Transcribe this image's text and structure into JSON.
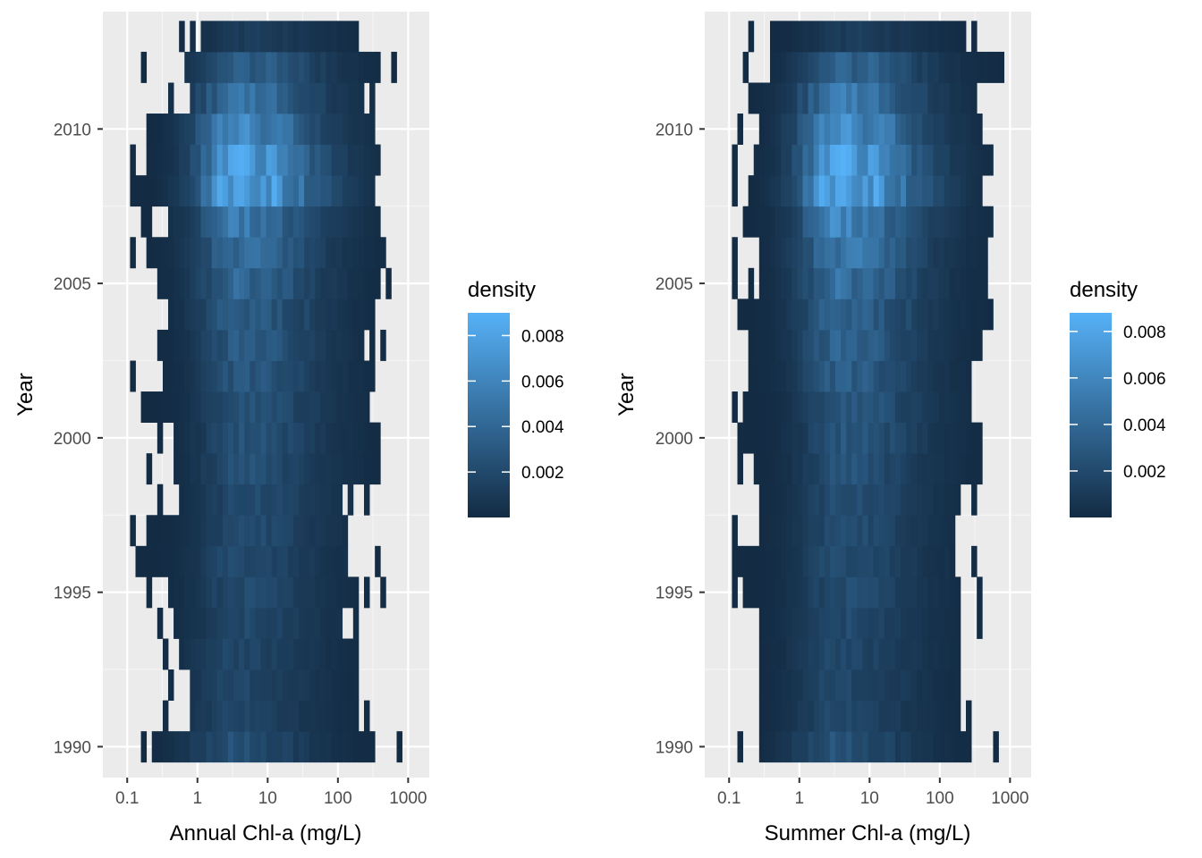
{
  "colors": {
    "panel_bg": "#ebebeb",
    "grid_major": "#ffffff",
    "grid_minor": "#f5f5f5",
    "tick": "#333333",
    "low": "#132b43",
    "high": "#56b1f7"
  },
  "chart_data": [
    {
      "type": "heatmap",
      "xlabel": "Annual Chl-a (mg/L)",
      "ylabel": "Year",
      "x_scale": "log10",
      "xlim": [
        0.045,
        2000
      ],
      "ylim": [
        1989,
        2013.8
      ],
      "x_ticks": [
        0.1,
        1,
        10,
        100,
        1000
      ],
      "x_tick_labels": [
        "0.1",
        "1",
        "10",
        "100",
        "1000"
      ],
      "y_ticks": [
        1990,
        1995,
        2000,
        2005,
        2010
      ],
      "y_tick_labels": [
        "1990",
        "1995",
        "2000",
        "2005",
        "2010"
      ],
      "legend": {
        "title": "density",
        "limits": [
          0.0,
          0.009
        ],
        "breaks": [
          0.002,
          0.004,
          0.006,
          0.008
        ],
        "break_labels": [
          "0.002",
          "0.004",
          "0.006",
          "0.008"
        ],
        "position": "right"
      },
      "rows": [
        {
          "year": 1990,
          "range": [
            0.22,
            330
          ],
          "outliers": [
            0.16,
            700
          ],
          "peak": 0.0025,
          "mode": 3.0
        },
        {
          "year": 1991,
          "range": [
            0.85,
            200
          ],
          "outliers": [
            0.36,
            250
          ],
          "peak": 0.0018,
          "mode": 3.5
        },
        {
          "year": 1992,
          "range": [
            0.72,
            205
          ],
          "outliers": [
            0.4
          ],
          "peak": 0.0019,
          "mode": 3.5
        },
        {
          "year": 1993,
          "range": [
            0.55,
            210
          ],
          "outliers": [
            0.36
          ],
          "peak": 0.0019,
          "mode": 3.5
        },
        {
          "year": 1994,
          "range": [
            0.5,
            120
          ],
          "outliers": [
            0.3,
            180
          ],
          "peak": 0.002,
          "mode": 4.0
        },
        {
          "year": 1995,
          "range": [
            0.35,
            180
          ],
          "outliers": [
            0.22,
            250,
            420
          ],
          "peak": 0.0021,
          "mode": 4.0
        },
        {
          "year": 1996,
          "range": [
            0.13,
            140
          ],
          "outliers": [
            360
          ],
          "peak": 0.0022,
          "mode": 4.0
        },
        {
          "year": 1997,
          "range": [
            0.18,
            130
          ],
          "outliers": [
            0.13
          ],
          "peak": 0.0022,
          "mode": 4.5
        },
        {
          "year": 1998,
          "range": [
            0.55,
            110
          ],
          "outliers": [
            0.3,
            150,
            260
          ],
          "peak": 0.0022,
          "mode": 4.5
        },
        {
          "year": 1999,
          "range": [
            0.42,
            400
          ],
          "outliers": [
            0.22
          ],
          "peak": 0.0025,
          "mode": 4.5
        },
        {
          "year": 2000,
          "range": [
            0.42,
            400
          ],
          "outliers": [
            0.28
          ],
          "peak": 0.0027,
          "mode": 4.5
        },
        {
          "year": 2001,
          "range": [
            0.16,
            300
          ],
          "outliers": [],
          "peak": 0.0028,
          "mode": 4.5
        },
        {
          "year": 2002,
          "range": [
            0.3,
            320
          ],
          "outliers": [
            0.13
          ],
          "peak": 0.003,
          "mode": 4.5
        },
        {
          "year": 2003,
          "range": [
            0.28,
            240
          ],
          "outliers": [
            300,
            420
          ],
          "peak": 0.0033,
          "mode": 4.5
        },
        {
          "year": 2004,
          "range": [
            0.35,
            350
          ],
          "outliers": [],
          "peak": 0.0036,
          "mode": 4.0
        },
        {
          "year": 2005,
          "range": [
            0.25,
            410
          ],
          "outliers": [
            560
          ],
          "peak": 0.004,
          "mode": 4.0
        },
        {
          "year": 2006,
          "range": [
            0.2,
            460
          ],
          "outliers": [
            0.13
          ],
          "peak": 0.0045,
          "mode": 4.0
        },
        {
          "year": 2007,
          "range": [
            0.38,
            380
          ],
          "outliers": [
            0.16,
            0.22
          ],
          "peak": 0.0055,
          "mode": 4.0
        },
        {
          "year": 2008,
          "range": [
            0.12,
            330
          ],
          "outliers": [],
          "peak": 0.0088,
          "mode": 4.0
        },
        {
          "year": 2009,
          "range": [
            0.18,
            420
          ],
          "outliers": [
            0.13
          ],
          "peak": 0.008,
          "mode": 4.0
        },
        {
          "year": 2010,
          "range": [
            0.2,
            260
          ],
          "outliers": [
            320
          ],
          "peak": 0.0065,
          "mode": 3.8
        },
        {
          "year": 2011,
          "range": [
            0.75,
            230
          ],
          "outliers": [
            0.4,
            300
          ],
          "peak": 0.005,
          "mode": 4.0
        },
        {
          "year": 2012,
          "range": [
            0.65,
            420
          ],
          "outliers": [
            0.18,
            600
          ],
          "peak": 0.0035,
          "mode": 4.5
        },
        {
          "year": 2013,
          "range": [
            1.1,
            200
          ],
          "outliers": [
            0.6,
            0.85
          ],
          "peak": 0.0012,
          "mode": 5.0
        }
      ]
    },
    {
      "type": "heatmap",
      "xlabel": "Summer Chl-a (mg/L)",
      "ylabel": "Year",
      "x_scale": "log10",
      "xlim": [
        0.045,
        2000
      ],
      "ylim": [
        1989,
        2013.8
      ],
      "x_ticks": [
        0.1,
        1,
        10,
        100,
        1000
      ],
      "x_tick_labels": [
        "0.1",
        "1",
        "10",
        "100",
        "1000"
      ],
      "y_ticks": [
        1990,
        1995,
        2000,
        2005,
        2010
      ],
      "y_tick_labels": [
        "1990",
        "1995",
        "2000",
        "2005",
        "2010"
      ],
      "legend": {
        "title": "density",
        "limits": [
          0.0,
          0.0088
        ],
        "breaks": [
          0.002,
          0.004,
          0.006,
          0.008
        ],
        "break_labels": [
          "0.002",
          "0.004",
          "0.006",
          "0.008"
        ],
        "position": "right"
      },
      "rows": [
        {
          "year": 1990,
          "range": [
            0.25,
            300
          ],
          "outliers": [
            0.15,
            650
          ],
          "peak": 0.0026,
          "mode": 3.0
        },
        {
          "year": 1991,
          "range": [
            0.25,
            200
          ],
          "outliers": [
            250
          ],
          "peak": 0.0019,
          "mode": 3.5
        },
        {
          "year": 1992,
          "range": [
            0.25,
            200
          ],
          "outliers": [],
          "peak": 0.0019,
          "mode": 3.5
        },
        {
          "year": 1993,
          "range": [
            0.25,
            200
          ],
          "outliers": [],
          "peak": 0.002,
          "mode": 3.5
        },
        {
          "year": 1994,
          "range": [
            0.25,
            200
          ],
          "outliers": [
            400
          ],
          "peak": 0.0021,
          "mode": 3.5
        },
        {
          "year": 1995,
          "range": [
            0.17,
            200
          ],
          "outliers": [
            0.12,
            400
          ],
          "peak": 0.0022,
          "mode": 4.0
        },
        {
          "year": 1996,
          "range": [
            0.12,
            160
          ],
          "outliers": [
            330
          ],
          "peak": 0.0023,
          "mode": 4.0
        },
        {
          "year": 1997,
          "range": [
            0.25,
            160
          ],
          "outliers": [
            0.12
          ],
          "peak": 0.0023,
          "mode": 4.0
        },
        {
          "year": 1998,
          "range": [
            0.25,
            200
          ],
          "outliers": [
            300
          ],
          "peak": 0.0024,
          "mode": 4.0
        },
        {
          "year": 1999,
          "range": [
            0.22,
            410
          ],
          "outliers": [
            0.15
          ],
          "peak": 0.0026,
          "mode": 4.5
        },
        {
          "year": 2000,
          "range": [
            0.13,
            410
          ],
          "outliers": [],
          "peak": 0.0029,
          "mode": 4.5
        },
        {
          "year": 2001,
          "range": [
            0.16,
            300
          ],
          "outliers": [
            0.12
          ],
          "peak": 0.0031,
          "mode": 4.5
        },
        {
          "year": 2002,
          "range": [
            0.18,
            300
          ],
          "outliers": [],
          "peak": 0.0034,
          "mode": 4.0
        },
        {
          "year": 2003,
          "range": [
            0.2,
            380
          ],
          "outliers": [],
          "peak": 0.0037,
          "mode": 4.0
        },
        {
          "year": 2004,
          "range": [
            0.13,
            550
          ],
          "outliers": [],
          "peak": 0.004,
          "mode": 4.0
        },
        {
          "year": 2005,
          "range": [
            0.25,
            480
          ],
          "outliers": [
            0.12,
            0.19
          ],
          "peak": 0.0045,
          "mode": 4.0
        },
        {
          "year": 2006,
          "range": [
            0.25,
            500
          ],
          "outliers": [
            0.12
          ],
          "peak": 0.0052,
          "mode": 4.0
        },
        {
          "year": 2007,
          "range": [
            0.16,
            550
          ],
          "outliers": [],
          "peak": 0.0062,
          "mode": 4.0
        },
        {
          "year": 2008,
          "range": [
            0.18,
            410
          ],
          "outliers": [
            0.12
          ],
          "peak": 0.0088,
          "mode": 4.0
        },
        {
          "year": 2009,
          "range": [
            0.22,
            550
          ],
          "outliers": [
            0.13
          ],
          "peak": 0.008,
          "mode": 4.0
        },
        {
          "year": 2010,
          "range": [
            0.25,
            400
          ],
          "outliers": [
            0.15
          ],
          "peak": 0.0068,
          "mode": 4.0
        },
        {
          "year": 2011,
          "range": [
            0.2,
            350
          ],
          "outliers": [],
          "peak": 0.0055,
          "mode": 4.0
        },
        {
          "year": 2012,
          "range": [
            0.35,
            800
          ],
          "outliers": [
            0.16
          ],
          "peak": 0.0038,
          "mode": 4.5
        },
        {
          "year": 2013,
          "range": [
            0.35,
            250
          ],
          "outliers": [
            0.2,
            300
          ],
          "peak": 0.0012,
          "mode": 5.0
        }
      ]
    }
  ]
}
